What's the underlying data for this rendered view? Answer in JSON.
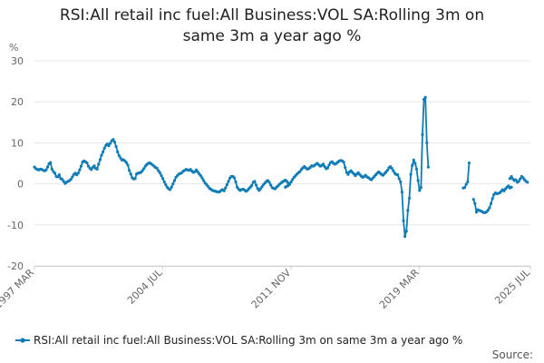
{
  "chart_data": {
    "type": "line",
    "title_lines": [
      "RSI:All retail inc fuel:All Business:VOL SA:Rolling 3m on",
      "same 3m a year ago %"
    ],
    "y_unit": "%",
    "ylim": [
      -20,
      30
    ],
    "y_ticks": [
      "30",
      "20",
      "10",
      "0",
      "-10",
      "-20"
    ],
    "x_ticks": [
      "1997 MAR",
      "2004 JUL",
      "2011 NOV",
      "2019 MAR",
      "2025 JUL"
    ],
    "grid": "horizontal",
    "legend_position": "bottom",
    "color": "#0f7cb6",
    "series": [
      {
        "name": "RSI:All retail inc fuel:All Business:VOL SA:Rolling 3m on same 3m a year ago %",
        "segments": [
          {
            "start": "1997-03",
            "values": [
              4.1,
              3.7,
              3.5,
              3.4,
              3.6,
              3.5,
              3.3,
              3.2,
              3.4,
              4.1,
              4.9,
              5.2,
              3.6,
              3.0,
              2.6,
              1.8,
              1.7,
              2.2,
              1.3,
              1.1,
              0.6,
              0.1,
              0.4,
              0.6,
              0.8,
              1.1,
              1.7,
              2.3,
              2.6,
              2.2,
              2.6,
              3.4,
              4.3,
              5.3,
              5.6,
              5.4,
              5.1,
              4.3,
              3.8,
              3.5,
              4.0,
              4.4,
              3.8,
              3.6,
              4.8,
              5.9,
              7.0,
              7.8,
              8.7,
              9.4,
              9.7,
              9.3,
              9.9,
              10.5,
              10.8,
              10.2,
              9.1,
              7.8,
              6.9,
              6.3,
              5.8,
              5.9,
              5.6,
              5.2,
              4.6,
              3.3,
              2.4,
              1.5,
              1.2,
              1.3,
              2.4,
              2.6,
              2.7,
              2.8,
              3.2,
              3.7,
              4.3,
              4.7,
              5.0,
              5.1,
              4.9,
              4.6,
              4.3,
              4.0,
              3.8,
              3.2,
              2.7,
              2.0,
              1.3,
              0.5,
              -0.2,
              -0.8,
              -1.2,
              -1.4,
              -0.8,
              0.0,
              0.8,
              1.6,
              2.0,
              2.4,
              2.5,
              2.7,
              3.1,
              3.3,
              3.5,
              3.4,
              3.3,
              3.5,
              3.1,
              2.8,
              3.0,
              3.4,
              2.9,
              2.4,
              2.0,
              1.4,
              0.8,
              0.2,
              -0.2,
              -0.6,
              -1.1,
              -1.3,
              -1.6,
              -1.7,
              -1.8,
              -1.9,
              -2.0,
              -1.9,
              -1.6,
              -1.4,
              -1.7,
              -1.0,
              -0.2,
              0.6,
              1.4,
              1.8,
              1.8,
              1.5,
              0.5,
              -0.8,
              -1.3,
              -1.6,
              -1.4,
              -1.3,
              -1.5,
              -1.8,
              -1.6,
              -1.2,
              -0.8,
              -0.4,
              0.4,
              0.6,
              -0.3,
              -1.1,
              -1.6,
              -1.2,
              -0.7,
              -0.2,
              0.2,
              0.6,
              0.8,
              0.4,
              -0.3,
              -0.9,
              -1.1,
              -1.2,
              -0.8,
              -0.5,
              -0.1,
              0.2,
              0.5,
              0.7,
              0.9,
              0.6,
              0.2
            ]
          },
          {
            "start": "2011-07",
            "values": [
              -0.8,
              -0.6,
              -0.4,
              -0.1,
              0.5,
              1.1,
              1.6,
              2.0,
              2.4,
              2.7,
              3.0,
              3.5,
              3.9,
              4.2,
              3.9,
              3.6,
              3.7,
              4.0,
              4.4,
              4.3,
              4.5,
              4.8,
              5.0,
              4.6,
              4.3,
              4.5,
              4.8,
              4.2,
              3.7,
              3.9,
              4.6,
              5.2,
              5.4,
              5.0,
              4.8,
              5.0,
              5.3,
              5.6,
              5.7,
              5.6,
              5.3,
              4.0,
              2.8,
              2.3,
              2.9,
              3.2,
              2.8,
              2.4,
              2.0,
              2.4,
              2.7,
              2.3,
              1.9,
              1.6,
              1.8,
              2.1,
              1.7,
              1.5,
              1.2,
              1.0,
              1.4,
              1.8,
              2.2,
              2.6,
              2.9,
              2.6,
              2.3,
              2.1,
              2.5,
              2.9,
              3.3,
              3.9,
              4.2,
              3.8,
              3.2,
              2.6,
              2.3,
              2.2,
              1.3,
              0.5,
              -2.0,
              -9.0,
              -12.8,
              -11.5,
              -6.5,
              -3.5,
              2.3,
              4.5,
              5.8,
              5.0,
              3.6,
              0.8,
              -1.6,
              -0.9,
              12.0,
              20.6,
              21.1,
              10.0,
              4.1
            ]
          },
          {
            "start": "2021-09",
            "values": [
              -1.0,
              -0.9,
              -0.1,
              0.5,
              5.1
            ]
          },
          {
            "start": "2022-04",
            "values": [
              -3.8,
              -4.8,
              -6.9,
              -6.3,
              -6.5,
              -6.6,
              -6.8,
              -7.0,
              -7.0,
              -6.8,
              -6.4,
              -5.8,
              -4.8,
              -3.6,
              -2.6,
              -2.2,
              -2.4,
              -2.3,
              -2.2,
              -1.8,
              -1.4,
              -1.7,
              -1.2,
              -0.8,
              -0.5,
              -1.0,
              -0.8
            ]
          },
          {
            "start": "2024-05",
            "values": [
              1.3,
              1.8,
              1.2,
              0.8,
              1.0,
              0.4,
              0.6,
              1.2,
              1.8,
              1.5,
              1.0,
              0.6,
              0.4
            ]
          }
        ]
      }
    ],
    "source_label": "Source:"
  }
}
